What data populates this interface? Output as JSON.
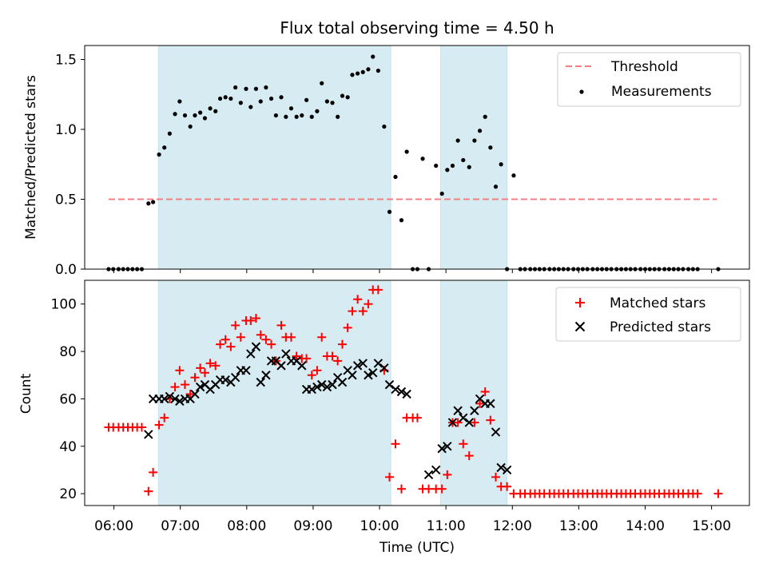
{
  "title": "Flux total observing time = 4.50 h",
  "xlabel": "Time (UTC)",
  "x_ticks": [
    "06:00",
    "07:00",
    "08:00",
    "09:00",
    "10:00",
    "11:00",
    "12:00",
    "13:00",
    "14:00",
    "15:00"
  ],
  "colors": {
    "threshold": "#f08080",
    "measurement": "#000000",
    "matched": "#ff0000",
    "predicted": "#000000",
    "shade": "#add8e6"
  },
  "chart_data": [
    {
      "type": "scatter",
      "ylabel": "Matched/Predicted stars",
      "x_unit": "hours UTC",
      "xlim": [
        5.56,
        15.57
      ],
      "ylim": [
        0,
        1.6
      ],
      "y_ticks": [
        "0.0",
        "0.5",
        "1.0",
        "1.5"
      ],
      "y_tick_values": [
        0,
        0.5,
        1.0,
        1.5
      ],
      "shaded_x_ranges": [
        [
          6.67,
          10.17
        ],
        [
          10.92,
          11.92
        ]
      ],
      "legend": {
        "placement": "top-right",
        "threshold_label": "Threshold",
        "measurement_label": "Measurements"
      },
      "threshold": {
        "value": 0.5,
        "x_range": [
          5.92,
          15.08
        ]
      },
      "measurements": [
        [
          5.92,
          0
        ],
        [
          5.99,
          0
        ],
        [
          6.07,
          0
        ],
        [
          6.14,
          0
        ],
        [
          6.21,
          0
        ],
        [
          6.28,
          0
        ],
        [
          6.35,
          0
        ],
        [
          6.42,
          0
        ],
        [
          6.52,
          0.47
        ],
        [
          6.59,
          0.48
        ],
        [
          6.68,
          0.82
        ],
        [
          6.76,
          0.87
        ],
        [
          6.84,
          0.97
        ],
        [
          6.92,
          1.11
        ],
        [
          6.99,
          1.2
        ],
        [
          7.07,
          1.1
        ],
        [
          7.15,
          1.02
        ],
        [
          7.22,
          1.1
        ],
        [
          7.3,
          1.12
        ],
        [
          7.37,
          1.08
        ],
        [
          7.45,
          1.15
        ],
        [
          7.53,
          1.13
        ],
        [
          7.6,
          1.22
        ],
        [
          7.68,
          1.23
        ],
        [
          7.76,
          1.22
        ],
        [
          7.83,
          1.3
        ],
        [
          7.91,
          1.19
        ],
        [
          7.99,
          1.29
        ],
        [
          8.06,
          1.16
        ],
        [
          8.14,
          1.29
        ],
        [
          8.21,
          1.2
        ],
        [
          8.29,
          1.3
        ],
        [
          8.37,
          1.22
        ],
        [
          8.44,
          1.1
        ],
        [
          8.52,
          1.23
        ],
        [
          8.59,
          1.09
        ],
        [
          8.67,
          1.15
        ],
        [
          8.75,
          1.09
        ],
        [
          8.83,
          1.1
        ],
        [
          8.9,
          1.21
        ],
        [
          8.98,
          1.09
        ],
        [
          9.06,
          1.13
        ],
        [
          9.13,
          1.33
        ],
        [
          9.21,
          1.2
        ],
        [
          9.29,
          1.19
        ],
        [
          9.37,
          1.09
        ],
        [
          9.44,
          1.24
        ],
        [
          9.52,
          1.23
        ],
        [
          9.59,
          1.39
        ],
        [
          9.67,
          1.4
        ],
        [
          9.75,
          1.41
        ],
        [
          9.83,
          1.43
        ],
        [
          9.9,
          1.52
        ],
        [
          9.98,
          1.42
        ],
        [
          10.07,
          1.02
        ],
        [
          10.15,
          0.41
        ],
        [
          10.24,
          0.66
        ],
        [
          10.33,
          0.35
        ],
        [
          10.41,
          0.84
        ],
        [
          10.5,
          0
        ],
        [
          10.57,
          0
        ],
        [
          10.65,
          0.79
        ],
        [
          10.74,
          0
        ],
        [
          10.85,
          0.74
        ],
        [
          10.94,
          0.54
        ],
        [
          11.02,
          0.71
        ],
        [
          11.1,
          0.74
        ],
        [
          11.18,
          0.92
        ],
        [
          11.26,
          0.78
        ],
        [
          11.35,
          0.73
        ],
        [
          11.43,
          0.92
        ],
        [
          11.51,
          0.99
        ],
        [
          11.59,
          1.09
        ],
        [
          11.67,
          0.87
        ],
        [
          11.75,
          0.59
        ],
        [
          11.83,
          0.75
        ],
        [
          11.92,
          0
        ],
        [
          12.02,
          0.67
        ],
        [
          12.12,
          0
        ],
        [
          12.19,
          0
        ],
        [
          12.27,
          0
        ],
        [
          12.34,
          0
        ],
        [
          12.41,
          0
        ],
        [
          12.48,
          0
        ],
        [
          12.56,
          0
        ],
        [
          12.63,
          0
        ],
        [
          12.7,
          0
        ],
        [
          12.77,
          0
        ],
        [
          12.84,
          0
        ],
        [
          12.92,
          0
        ],
        [
          12.99,
          0
        ],
        [
          13.06,
          0
        ],
        [
          13.13,
          0
        ],
        [
          13.21,
          0
        ],
        [
          13.28,
          0
        ],
        [
          13.35,
          0
        ],
        [
          13.42,
          0
        ],
        [
          13.49,
          0
        ],
        [
          13.57,
          0
        ],
        [
          13.64,
          0
        ],
        [
          13.71,
          0
        ],
        [
          13.78,
          0
        ],
        [
          13.85,
          0
        ],
        [
          13.93,
          0
        ],
        [
          14.0,
          0
        ],
        [
          14.07,
          0
        ],
        [
          14.14,
          0
        ],
        [
          14.21,
          0
        ],
        [
          14.29,
          0
        ],
        [
          14.36,
          0
        ],
        [
          14.43,
          0
        ],
        [
          14.5,
          0
        ],
        [
          14.57,
          0
        ],
        [
          14.65,
          0
        ],
        [
          14.72,
          0
        ],
        [
          14.79,
          0
        ],
        [
          15.1,
          0
        ]
      ]
    },
    {
      "type": "scatter",
      "ylabel": "Count",
      "x_unit": "hours UTC",
      "xlim": [
        5.56,
        15.57
      ],
      "ylim": [
        15,
        110
      ],
      "y_ticks": [
        "20",
        "40",
        "60",
        "80",
        "100"
      ],
      "y_tick_values": [
        20,
        40,
        60,
        80,
        100
      ],
      "shaded_x_ranges": [
        [
          6.67,
          10.17
        ],
        [
          10.92,
          11.92
        ]
      ],
      "legend": {
        "placement": "top-right",
        "matched_label": "Matched stars",
        "predicted_label": "Predicted stars"
      },
      "matched": [
        [
          5.92,
          48
        ],
        [
          5.99,
          48
        ],
        [
          6.07,
          48
        ],
        [
          6.14,
          48
        ],
        [
          6.21,
          48
        ],
        [
          6.28,
          48
        ],
        [
          6.35,
          48
        ],
        [
          6.42,
          48
        ],
        [
          6.52,
          21
        ],
        [
          6.59,
          29
        ],
        [
          6.68,
          49
        ],
        [
          6.76,
          52
        ],
        [
          6.84,
          60
        ],
        [
          6.92,
          65
        ],
        [
          6.99,
          72
        ],
        [
          7.07,
          66
        ],
        [
          7.15,
          62
        ],
        [
          7.22,
          69
        ],
        [
          7.3,
          73
        ],
        [
          7.37,
          71
        ],
        [
          7.45,
          75
        ],
        [
          7.53,
          74
        ],
        [
          7.6,
          83
        ],
        [
          7.68,
          85
        ],
        [
          7.76,
          82
        ],
        [
          7.83,
          91
        ],
        [
          7.91,
          86
        ],
        [
          7.99,
          93
        ],
        [
          8.06,
          93
        ],
        [
          8.14,
          94
        ],
        [
          8.21,
          87
        ],
        [
          8.29,
          85
        ],
        [
          8.37,
          83
        ],
        [
          8.44,
          76
        ],
        [
          8.52,
          91
        ],
        [
          8.59,
          86
        ],
        [
          8.67,
          86
        ],
        [
          8.75,
          78
        ],
        [
          8.83,
          77
        ],
        [
          8.9,
          77
        ],
        [
          8.98,
          70
        ],
        [
          9.06,
          72
        ],
        [
          9.13,
          86
        ],
        [
          9.21,
          78
        ],
        [
          9.29,
          78
        ],
        [
          9.37,
          76
        ],
        [
          9.44,
          83
        ],
        [
          9.52,
          90
        ],
        [
          9.59,
          97
        ],
        [
          9.67,
          102
        ],
        [
          9.75,
          97
        ],
        [
          9.83,
          100
        ],
        [
          9.9,
          106
        ],
        [
          9.98,
          106
        ],
        [
          10.07,
          72
        ],
        [
          10.15,
          27
        ],
        [
          10.24,
          41
        ],
        [
          10.33,
          22
        ],
        [
          10.41,
          52
        ],
        [
          10.5,
          52
        ],
        [
          10.57,
          52
        ],
        [
          10.65,
          22
        ],
        [
          10.74,
          22
        ],
        [
          10.85,
          22
        ],
        [
          10.94,
          22
        ],
        [
          11.02,
          28
        ],
        [
          11.1,
          50
        ],
        [
          11.18,
          50
        ],
        [
          11.26,
          41
        ],
        [
          11.35,
          36
        ],
        [
          11.43,
          50
        ],
        [
          11.51,
          58
        ],
        [
          11.59,
          63
        ],
        [
          11.67,
          51
        ],
        [
          11.75,
          27
        ],
        [
          11.83,
          23
        ],
        [
          11.92,
          23
        ],
        [
          12.02,
          20
        ],
        [
          12.12,
          20
        ],
        [
          12.19,
          20
        ],
        [
          12.27,
          20
        ],
        [
          12.34,
          20
        ],
        [
          12.41,
          20
        ],
        [
          12.48,
          20
        ],
        [
          12.56,
          20
        ],
        [
          12.63,
          20
        ],
        [
          12.7,
          20
        ],
        [
          12.77,
          20
        ],
        [
          12.84,
          20
        ],
        [
          12.92,
          20
        ],
        [
          12.99,
          20
        ],
        [
          13.06,
          20
        ],
        [
          13.13,
          20
        ],
        [
          13.21,
          20
        ],
        [
          13.28,
          20
        ],
        [
          13.35,
          20
        ],
        [
          13.42,
          20
        ],
        [
          13.49,
          20
        ],
        [
          13.57,
          20
        ],
        [
          13.64,
          20
        ],
        [
          13.71,
          20
        ],
        [
          13.78,
          20
        ],
        [
          13.85,
          20
        ],
        [
          13.93,
          20
        ],
        [
          14.0,
          20
        ],
        [
          14.07,
          20
        ],
        [
          14.14,
          20
        ],
        [
          14.21,
          20
        ],
        [
          14.29,
          20
        ],
        [
          14.36,
          20
        ],
        [
          14.43,
          20
        ],
        [
          14.5,
          20
        ],
        [
          14.57,
          20
        ],
        [
          14.65,
          20
        ],
        [
          14.72,
          20
        ],
        [
          14.79,
          20
        ],
        [
          15.1,
          20
        ]
      ],
      "predicted": [
        [
          6.52,
          45
        ],
        [
          6.59,
          60
        ],
        [
          6.68,
          60
        ],
        [
          6.76,
          60
        ],
        [
          6.84,
          61
        ],
        [
          6.92,
          60
        ],
        [
          6.99,
          59
        ],
        [
          7.07,
          60
        ],
        [
          7.15,
          60
        ],
        [
          7.22,
          62
        ],
        [
          7.3,
          65
        ],
        [
          7.37,
          66
        ],
        [
          7.45,
          64
        ],
        [
          7.53,
          66
        ],
        [
          7.6,
          68
        ],
        [
          7.68,
          68
        ],
        [
          7.76,
          67
        ],
        [
          7.83,
          69
        ],
        [
          7.91,
          72
        ],
        [
          7.99,
          72
        ],
        [
          8.06,
          79
        ],
        [
          8.14,
          82
        ],
        [
          8.21,
          67
        ],
        [
          8.29,
          70
        ],
        [
          8.37,
          76
        ],
        [
          8.44,
          76
        ],
        [
          8.52,
          74
        ],
        [
          8.59,
          79
        ],
        [
          8.67,
          76
        ],
        [
          8.75,
          76
        ],
        [
          8.83,
          74
        ],
        [
          8.9,
          64
        ],
        [
          8.98,
          64
        ],
        [
          9.06,
          65
        ],
        [
          9.13,
          66
        ],
        [
          9.21,
          65
        ],
        [
          9.29,
          66
        ],
        [
          9.37,
          69
        ],
        [
          9.44,
          67
        ],
        [
          9.52,
          72
        ],
        [
          9.59,
          70
        ],
        [
          9.67,
          74
        ],
        [
          9.75,
          75
        ],
        [
          9.83,
          70
        ],
        [
          9.9,
          71
        ],
        [
          9.98,
          75
        ],
        [
          10.07,
          73
        ],
        [
          10.15,
          66
        ],
        [
          10.24,
          64
        ],
        [
          10.33,
          63
        ],
        [
          10.41,
          62
        ],
        [
          10.74,
          28
        ],
        [
          10.85,
          30
        ],
        [
          10.94,
          39
        ],
        [
          11.02,
          40
        ],
        [
          11.1,
          50
        ],
        [
          11.18,
          55
        ],
        [
          11.26,
          52
        ],
        [
          11.35,
          50
        ],
        [
          11.43,
          55
        ],
        [
          11.51,
          60
        ],
        [
          11.59,
          58
        ],
        [
          11.67,
          58
        ],
        [
          11.75,
          46
        ],
        [
          11.83,
          31
        ],
        [
          11.92,
          30
        ]
      ]
    }
  ]
}
